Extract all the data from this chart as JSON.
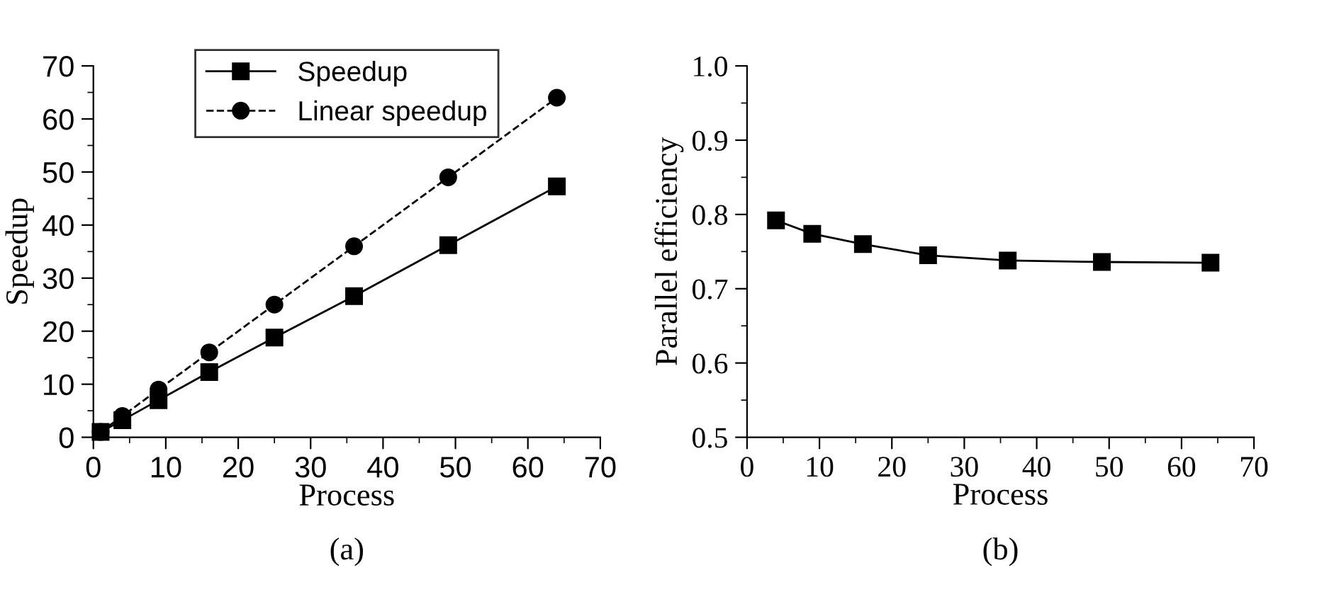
{
  "chart_data": [
    {
      "type": "line",
      "xlabel": "Process",
      "ylabel": "Speedup",
      "annotations": [
        "(a)"
      ],
      "xlim": [
        0,
        70
      ],
      "ylim": [
        0,
        70
      ],
      "xticks": [
        0,
        10,
        20,
        30,
        40,
        50,
        60,
        70
      ],
      "yticks": [
        0,
        10,
        20,
        30,
        40,
        50,
        60,
        70
      ],
      "x": [
        1,
        4,
        9,
        16,
        25,
        36,
        49,
        64
      ],
      "legend": "top",
      "grid": false,
      "series": [
        {
          "name": "Speedup",
          "color": "#000000",
          "marker": "square",
          "line_style": "solid",
          "values": [
            1.0,
            3.2,
            7.0,
            12.3,
            18.8,
            26.6,
            36.2,
            47.3
          ]
        },
        {
          "name": "Linear speedup",
          "color": "#000000",
          "marker": "circle",
          "line_style": "dashed",
          "values": [
            1,
            4,
            9,
            16,
            25,
            36,
            49,
            64
          ]
        }
      ]
    },
    {
      "type": "line",
      "xlabel": "Process",
      "ylabel": "Parallel efficiency",
      "annotations": [
        "(b)"
      ],
      "xlim": [
        0,
        70
      ],
      "ylim": [
        0.5,
        1.0
      ],
      "xticks": [
        0,
        10,
        20,
        30,
        40,
        50,
        60,
        70
      ],
      "yticks": [
        {
          "value": 0.5,
          "label": "0.5"
        },
        {
          "value": 0.6,
          "label": "0.6"
        },
        {
          "value": 0.7,
          "label": "0.7"
        },
        {
          "value": 0.8,
          "label": "0.8"
        },
        {
          "value": 0.9,
          "label": "0.9"
        },
        {
          "value": 1.0,
          "label": "1.0"
        }
      ],
      "x": [
        4,
        9,
        16,
        25,
        36,
        49,
        64
      ],
      "grid": false,
      "series": [
        {
          "color": "#000000",
          "marker": "square",
          "line_style": "solid",
          "values": [
            0.792,
            0.774,
            0.76,
            0.745,
            0.738,
            0.736,
            0.735
          ]
        }
      ]
    }
  ]
}
